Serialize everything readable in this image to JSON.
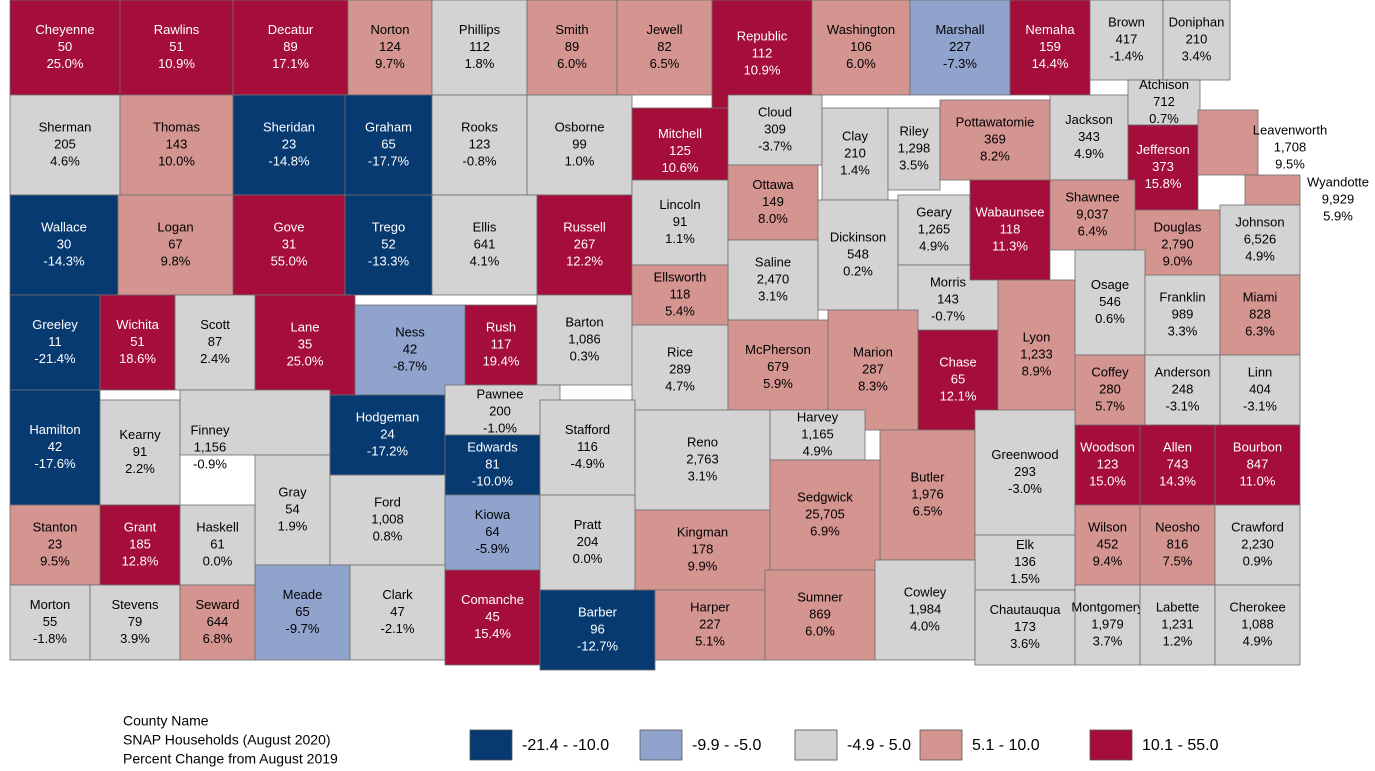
{
  "counties": [
    {
      "name": "Cheyenne",
      "households": "50",
      "change": "25.0%",
      "color": "#a50d3b"
    },
    {
      "name": "Rawlins",
      "households": "51",
      "change": "10.9%",
      "color": "#a50d3b"
    },
    {
      "name": "Decatur",
      "households": "89",
      "change": "17.1%",
      "color": "#a50d3b"
    },
    {
      "name": "Norton",
      "households": "124",
      "change": "9.7%",
      "color": "#d49490"
    },
    {
      "name": "Phillips",
      "households": "112",
      "change": "1.8%",
      "color": "#d3d3d3"
    },
    {
      "name": "Smith",
      "households": "89",
      "change": "6.0%",
      "color": "#d49490"
    },
    {
      "name": "Jewell",
      "households": "82",
      "change": "6.5%",
      "color": "#d49490"
    },
    {
      "name": "Republic",
      "households": "112",
      "change": "10.9%",
      "color": "#a50d3b"
    },
    {
      "name": "Washington",
      "households": "106",
      "change": "6.0%",
      "color": "#d49490"
    },
    {
      "name": "Marshall",
      "households": "227",
      "change": "-7.3%",
      "color": "#8fa3cc"
    },
    {
      "name": "Nemaha",
      "households": "159",
      "change": "14.4%",
      "color": "#a50d3b"
    },
    {
      "name": "Brown",
      "households": "417",
      "change": "-1.4%",
      "color": "#d3d3d3"
    },
    {
      "name": "Doniphan",
      "households": "210",
      "change": "3.4%",
      "color": "#d3d3d3"
    },
    {
      "name": "Sherman",
      "households": "205",
      "change": "4.6%",
      "color": "#d3d3d3"
    },
    {
      "name": "Thomas",
      "households": "143",
      "change": "10.0%",
      "color": "#d49490"
    },
    {
      "name": "Sheridan",
      "households": "23",
      "change": "-14.8%",
      "color": "#083a72"
    },
    {
      "name": "Graham",
      "households": "65",
      "change": "-17.7%",
      "color": "#083a72"
    },
    {
      "name": "Rooks",
      "households": "123",
      "change": "-0.8%",
      "color": "#d3d3d3"
    },
    {
      "name": "Osborne",
      "households": "99",
      "change": "1.0%",
      "color": "#d3d3d3"
    },
    {
      "name": "Mitchell",
      "households": "125",
      "change": "10.6%",
      "color": "#a50d3b"
    },
    {
      "name": "Cloud",
      "households": "309",
      "change": "-3.7%",
      "color": "#d3d3d3"
    },
    {
      "name": "Clay",
      "households": "210",
      "change": "1.4%",
      "color": "#d3d3d3"
    },
    {
      "name": "Riley",
      "households": "1,298",
      "change": "3.5%",
      "color": "#d3d3d3"
    },
    {
      "name": "Pottawatomie",
      "households": "369",
      "change": "8.2%",
      "color": "#d49490"
    },
    {
      "name": "Jackson",
      "households": "343",
      "change": "4.9%",
      "color": "#d3d3d3"
    },
    {
      "name": "Atchison",
      "households": "712",
      "change": "0.7%",
      "color": "#d3d3d3"
    },
    {
      "name": "Jefferson",
      "households": "373",
      "change": "15.8%",
      "color": "#a50d3b"
    },
    {
      "name": "Leavenworth",
      "households": "1,708",
      "change": "9.5%",
      "color": "#d49490"
    },
    {
      "name": "Wyandotte",
      "households": "9,929",
      "change": "5.9%",
      "color": "#d49490"
    },
    {
      "name": "Wallace",
      "households": "30",
      "change": "-14.3%",
      "color": "#083a72"
    },
    {
      "name": "Logan",
      "households": "67",
      "change": "9.8%",
      "color": "#d49490"
    },
    {
      "name": "Gove",
      "households": "31",
      "change": "55.0%",
      "color": "#a50d3b"
    },
    {
      "name": "Trego",
      "households": "52",
      "change": "-13.3%",
      "color": "#083a72"
    },
    {
      "name": "Ellis",
      "households": "641",
      "change": "4.1%",
      "color": "#d3d3d3"
    },
    {
      "name": "Russell",
      "households": "267",
      "change": "12.2%",
      "color": "#a50d3b"
    },
    {
      "name": "Lincoln",
      "households": "91",
      "change": "1.1%",
      "color": "#d3d3d3"
    },
    {
      "name": "Ottawa",
      "households": "149",
      "change": "8.0%",
      "color": "#d49490"
    },
    {
      "name": "Saline",
      "households": "2,470",
      "change": "3.1%",
      "color": "#d3d3d3"
    },
    {
      "name": "Dickinson",
      "households": "548",
      "change": "0.2%",
      "color": "#d3d3d3"
    },
    {
      "name": "Geary",
      "households": "1,265",
      "change": "4.9%",
      "color": "#d3d3d3"
    },
    {
      "name": "Morris",
      "households": "143",
      "change": "-0.7%",
      "color": "#d3d3d3"
    },
    {
      "name": "Wabaunsee",
      "households": "118",
      "change": "11.3%",
      "color": "#a50d3b"
    },
    {
      "name": "Shawnee",
      "households": "9,037",
      "change": "6.4%",
      "color": "#d49490"
    },
    {
      "name": "Douglas",
      "households": "2,790",
      "change": "9.0%",
      "color": "#d49490"
    },
    {
      "name": "Johnson",
      "households": "6,526",
      "change": "4.9%",
      "color": "#d3d3d3"
    },
    {
      "name": "Greeley",
      "households": "11",
      "change": "-21.4%",
      "color": "#083a72"
    },
    {
      "name": "Wichita",
      "households": "51",
      "change": "18.6%",
      "color": "#a50d3b"
    },
    {
      "name": "Scott",
      "households": "87",
      "change": "2.4%",
      "color": "#d3d3d3"
    },
    {
      "name": "Lane",
      "households": "35",
      "change": "25.0%",
      "color": "#a50d3b"
    },
    {
      "name": "Ness",
      "households": "42",
      "change": "-8.7%",
      "color": "#8fa3cc"
    },
    {
      "name": "Rush",
      "households": "117",
      "change": "19.4%",
      "color": "#a50d3b"
    },
    {
      "name": "Barton",
      "households": "1,086",
      "change": "0.3%",
      "color": "#d3d3d3"
    },
    {
      "name": "Ellsworth",
      "households": "118",
      "change": "5.4%",
      "color": "#d49490"
    },
    {
      "name": "Rice",
      "households": "289",
      "change": "4.7%",
      "color": "#d3d3d3"
    },
    {
      "name": "McPherson",
      "households": "679",
      "change": "5.9%",
      "color": "#d49490"
    },
    {
      "name": "Marion",
      "households": "287",
      "change": "8.3%",
      "color": "#d49490"
    },
    {
      "name": "Chase",
      "households": "65",
      "change": "12.1%",
      "color": "#a50d3b"
    },
    {
      "name": "Lyon",
      "households": "1,233",
      "change": "8.9%",
      "color": "#d49490"
    },
    {
      "name": "Osage",
      "households": "546",
      "change": "0.6%",
      "color": "#d3d3d3"
    },
    {
      "name": "Franklin",
      "households": "989",
      "change": "3.3%",
      "color": "#d3d3d3"
    },
    {
      "name": "Miami",
      "households": "828",
      "change": "6.3%",
      "color": "#d49490"
    },
    {
      "name": "Coffey",
      "households": "280",
      "change": "5.7%",
      "color": "#d49490"
    },
    {
      "name": "Anderson",
      "households": "248",
      "change": "-3.1%",
      "color": "#d3d3d3"
    },
    {
      "name": "Linn",
      "households": "404",
      "change": "-3.1%",
      "color": "#d3d3d3"
    },
    {
      "name": "Hamilton",
      "households": "42",
      "change": "-17.6%",
      "color": "#083a72"
    },
    {
      "name": "Kearny",
      "households": "91",
      "change": "2.2%",
      "color": "#d3d3d3"
    },
    {
      "name": "Finney",
      "households": "1,156",
      "change": "-0.9%",
      "color": "#d3d3d3"
    },
    {
      "name": "Gray",
      "households": "54",
      "change": "1.9%",
      "color": "#d3d3d3"
    },
    {
      "name": "Hodgeman",
      "households": "24",
      "change": "-17.2%",
      "color": "#083a72"
    },
    {
      "name": "Pawnee",
      "households": "200",
      "change": "-1.0%",
      "color": "#d3d3d3"
    },
    {
      "name": "Edwards",
      "households": "81",
      "change": "-10.0%",
      "color": "#083a72"
    },
    {
      "name": "Stafford",
      "households": "116",
      "change": "-4.9%",
      "color": "#d3d3d3"
    },
    {
      "name": "Reno",
      "households": "2,763",
      "change": "3.1%",
      "color": "#d3d3d3"
    },
    {
      "name": "Harvey",
      "households": "1,165",
      "change": "4.9%",
      "color": "#d3d3d3"
    },
    {
      "name": "Butler",
      "households": "1,976",
      "change": "6.5%",
      "color": "#d49490"
    },
    {
      "name": "Greenwood",
      "households": "293",
      "change": "-3.0%",
      "color": "#d3d3d3"
    },
    {
      "name": "Woodson",
      "households": "123",
      "change": "15.0%",
      "color": "#a50d3b"
    },
    {
      "name": "Allen",
      "households": "743",
      "change": "14.3%",
      "color": "#a50d3b"
    },
    {
      "name": "Bourbon",
      "households": "847",
      "change": "11.0%",
      "color": "#a50d3b"
    },
    {
      "name": "Stanton",
      "households": "23",
      "change": "9.5%",
      "color": "#d49490"
    },
    {
      "name": "Grant",
      "households": "185",
      "change": "12.8%",
      "color": "#a50d3b"
    },
    {
      "name": "Haskell",
      "households": "61",
      "change": "0.0%",
      "color": "#d3d3d3"
    },
    {
      "name": "Ford",
      "households": "1,008",
      "change": "0.8%",
      "color": "#d3d3d3"
    },
    {
      "name": "Kiowa",
      "households": "64",
      "change": "-5.9%",
      "color": "#8fa3cc"
    },
    {
      "name": "Pratt",
      "households": "204",
      "change": "0.0%",
      "color": "#d3d3d3"
    },
    {
      "name": "Kingman",
      "households": "178",
      "change": "9.9%",
      "color": "#d49490"
    },
    {
      "name": "Sedgwick",
      "households": "25,705",
      "change": "6.9%",
      "color": "#d49490"
    },
    {
      "name": "Elk",
      "households": "136",
      "change": "1.5%",
      "color": "#d3d3d3"
    },
    {
      "name": "Wilson",
      "households": "452",
      "change": "9.4%",
      "color": "#d49490"
    },
    {
      "name": "Neosho",
      "households": "816",
      "change": "7.5%",
      "color": "#d49490"
    },
    {
      "name": "Crawford",
      "households": "2,230",
      "change": "0.9%",
      "color": "#d3d3d3"
    },
    {
      "name": "Morton",
      "households": "55",
      "change": "-1.8%",
      "color": "#d3d3d3"
    },
    {
      "name": "Stevens",
      "households": "79",
      "change": "3.9%",
      "color": "#d3d3d3"
    },
    {
      "name": "Seward",
      "households": "644",
      "change": "6.8%",
      "color": "#d49490"
    },
    {
      "name": "Meade",
      "households": "65",
      "change": "-9.7%",
      "color": "#8fa3cc"
    },
    {
      "name": "Clark",
      "households": "47",
      "change": "-2.1%",
      "color": "#d3d3d3"
    },
    {
      "name": "Comanche",
      "households": "45",
      "change": "15.4%",
      "color": "#a50d3b"
    },
    {
      "name": "Barber",
      "households": "96",
      "change": "-12.7%",
      "color": "#083a72"
    },
    {
      "name": "Harper",
      "households": "227",
      "change": "5.1%",
      "color": "#d49490"
    },
    {
      "name": "Sumner",
      "households": "869",
      "change": "6.0%",
      "color": "#d49490"
    },
    {
      "name": "Cowley",
      "households": "1,984",
      "change": "4.0%",
      "color": "#d3d3d3"
    },
    {
      "name": "Chautauqua",
      "households": "173",
      "change": "3.6%",
      "color": "#d3d3d3"
    },
    {
      "name": "Montgomery",
      "households": "1,979",
      "change": "3.7%",
      "color": "#d3d3d3"
    },
    {
      "name": "Labette",
      "households": "1,231",
      "change": "1.2%",
      "color": "#d3d3d3"
    },
    {
      "name": "Cherokee",
      "households": "1,088",
      "change": "4.9%",
      "color": "#d3d3d3"
    }
  ],
  "key": [
    "County Name",
    "SNAP Households (August 2020)",
    "Percent Change from August 2019"
  ],
  "legend": [
    {
      "label": "-21.4 - -10.0",
      "color": "#083a72"
    },
    {
      "label": "-9.9 - -5.0",
      "color": "#8fa3cc"
    },
    {
      "label": "-4.9 - 5.0",
      "color": "#d3d3d3"
    },
    {
      "label": "5.1 - 10.0",
      "color": "#d49490"
    },
    {
      "label": "10.1 - 55.0",
      "color": "#a50d3b"
    }
  ]
}
